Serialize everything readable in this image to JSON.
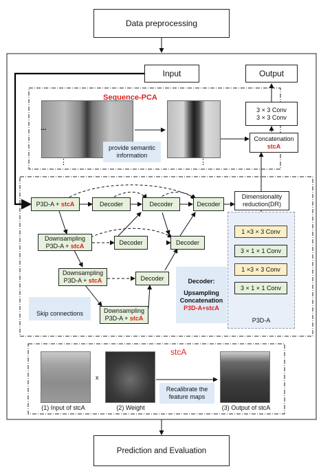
{
  "top_box": "Data preprocessing",
  "input_label": "Input",
  "output_label": "Output",
  "conv_top": [
    "3 × 3 Conv",
    "3 × 3 Conv"
  ],
  "concat": {
    "line1": "Concatenation",
    "line2": "stcA"
  },
  "seq_pca_title": "Sequence-PCA",
  "semantic_note": "provide semantic information",
  "dots": "...",
  "vdots": "⋮",
  "p3d_first": {
    "prefix": "P3D-A +",
    "red": "stcA"
  },
  "down_label": "Downsampling",
  "p3d_plus": "P3D-A + ",
  "stca": "stcA",
  "decoder": "Decoder",
  "dr": {
    "line1": "Dimensionality",
    "line2": "reduction(DR)"
  },
  "p3d_stack": [
    "1 ×3 × 3 Conv",
    "3 × 1 × 1 Conv",
    "1 ×3 × 3 Conv",
    "3 × 1 × 1 Conv"
  ],
  "p3d_title": "P3D-A",
  "skip_label": "Skip connections",
  "decoder_legend": {
    "title": "Decoder:",
    "line1": "Upsampling",
    "line2": "Concatenation",
    "line3": "P3D-A+stcA"
  },
  "stca_section_title": "stcA",
  "times": "x",
  "recalibrate": "Recalibrate the feature maps",
  "captions": [
    "(1) Input of stcA",
    "(2) Weight",
    "(3) Output of stcA"
  ],
  "bottom_box": "Prediction and Evaluation"
}
